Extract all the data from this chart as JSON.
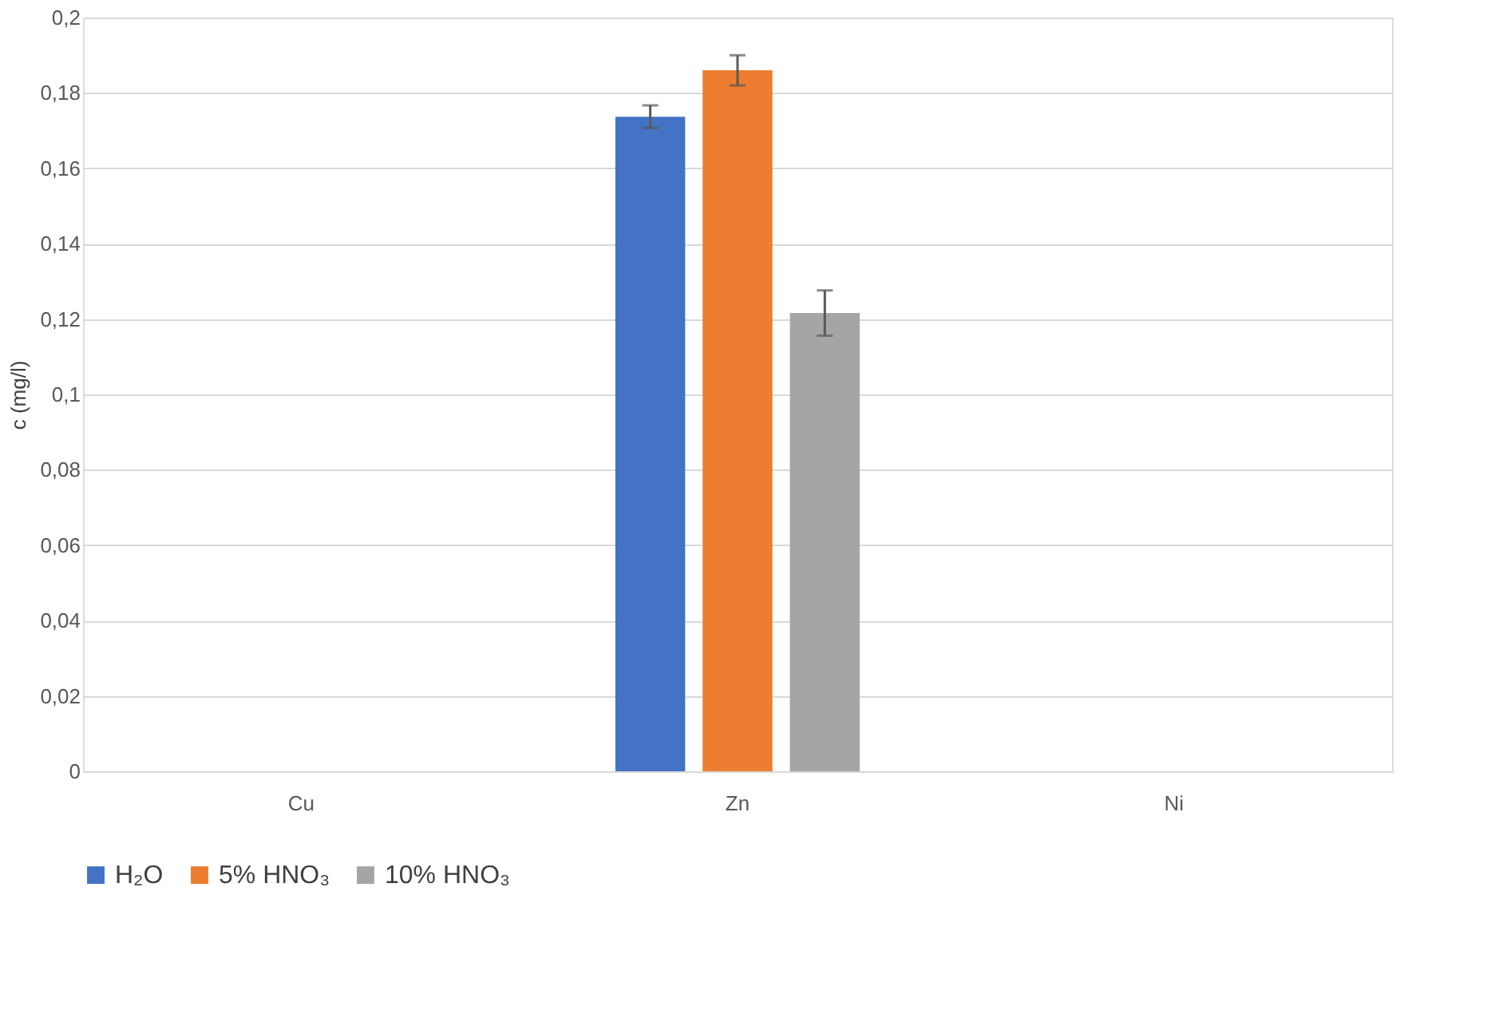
{
  "chart_data": {
    "type": "bar",
    "ylabel": "c (mg/l)",
    "categories": [
      "Cu",
      "Zn",
      "Ni"
    ],
    "series": [
      {
        "name": "H₂O",
        "color": "#4472c4",
        "values": [
          null,
          0.1737,
          null
        ],
        "errors": [
          null,
          0.003,
          null
        ]
      },
      {
        "name": "5% HNO₃",
        "color": "#ed7d31",
        "values": [
          null,
          0.186,
          null
        ],
        "errors": [
          null,
          0.004,
          null
        ]
      },
      {
        "name": "10% HNO₃",
        "color": "#a5a5a5",
        "values": [
          null,
          0.1216,
          null
        ],
        "errors": [
          null,
          0.006,
          null
        ]
      }
    ],
    "ylim": [
      0,
      0.2
    ],
    "yticks": [
      0,
      {
        "value": 0.02,
        "label": "0,02"
      },
      {
        "value": 0.04,
        "label": "0,04"
      },
      {
        "value": 0.06,
        "label": "0,06"
      },
      {
        "value": 0.08,
        "label": "0,08"
      },
      {
        "value": 0.1,
        "label": "0,1"
      },
      {
        "value": 0.12,
        "label": "0,12"
      },
      {
        "value": 0.14,
        "label": "0,14"
      },
      {
        "value": 0.16,
        "label": "0,16"
      },
      {
        "value": 0.18,
        "label": "0,18"
      },
      {
        "value": 0.2,
        "label": "0,2"
      }
    ],
    "grid": "y",
    "legend": "bottom"
  }
}
